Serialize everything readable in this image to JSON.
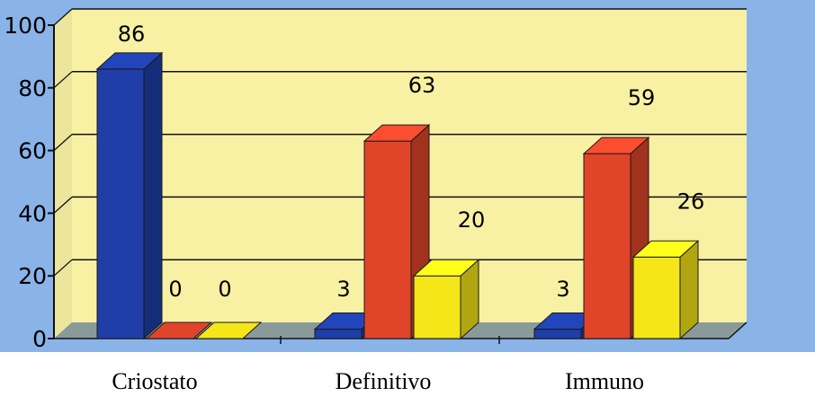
{
  "chart_data": {
    "type": "bar",
    "title": "",
    "xlabel": "",
    "ylabel": "",
    "categories": [
      "Criostato",
      "Definitivo",
      "Immuno"
    ],
    "series": [
      {
        "values": [
          86,
          3,
          3
        ],
        "color": "#1f3ea8"
      },
      {
        "values": [
          0,
          63,
          59
        ],
        "color": "#e0452a"
      },
      {
        "values": [
          0,
          20,
          26
        ],
        "color": "#f4e619"
      }
    ],
    "ylim": [
      0,
      100
    ],
    "yticks": [
      "0",
      "20",
      "40",
      "60",
      "80",
      "100"
    ],
    "data_labels": [
      [
        "86",
        "3",
        "3"
      ],
      [
        "0",
        "63",
        "59"
      ],
      [
        "0",
        "20",
        "26"
      ]
    ],
    "grid": true,
    "legend": "none",
    "projection": "3d-bars"
  },
  "colors": {
    "outer_background": "#8ab3e8",
    "plot_background": "#f8f1a4",
    "floor": "#8a9a9a",
    "gridline": "#111111"
  }
}
